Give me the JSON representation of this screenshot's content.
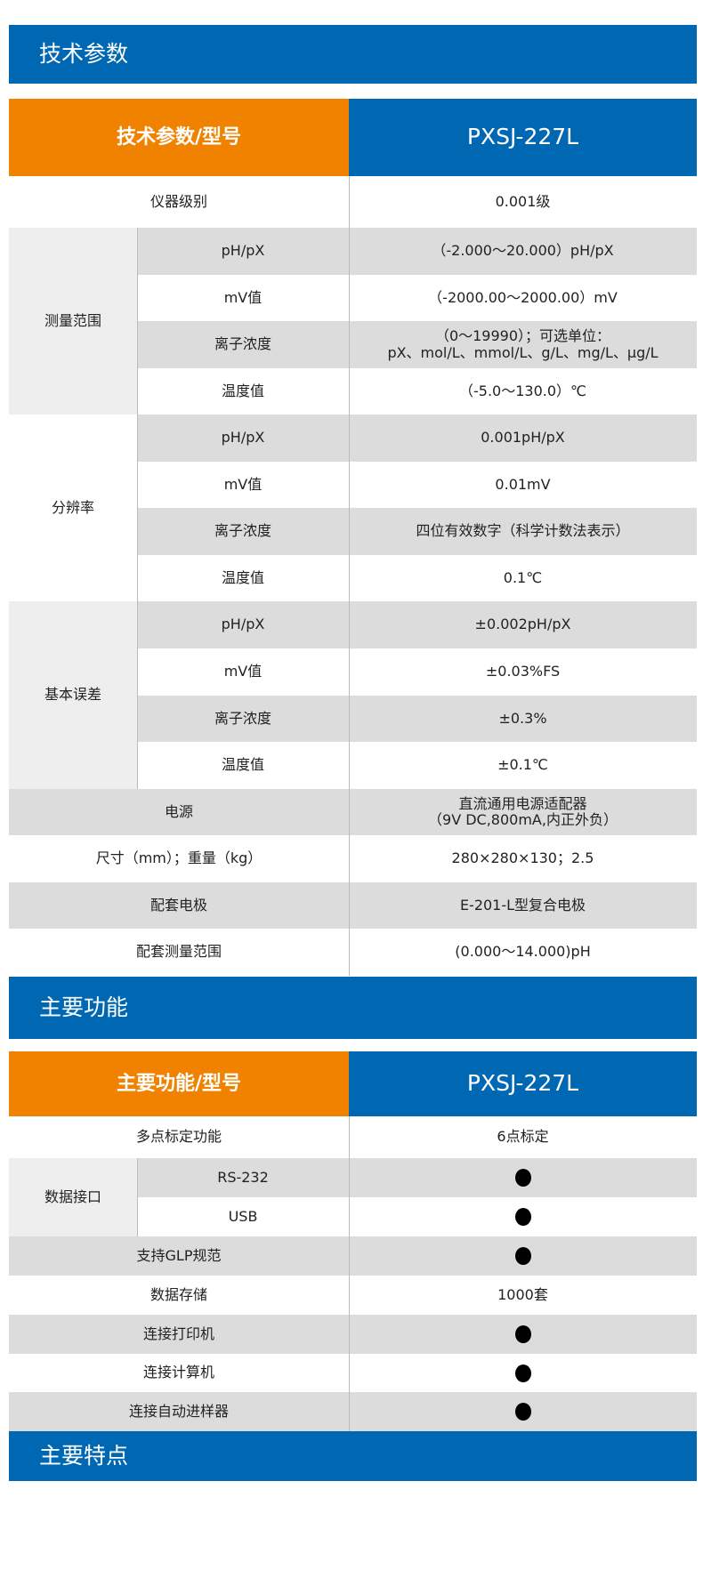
{
  "colors": {
    "blue": "#0068b3",
    "orange": "#f08200",
    "row_gray": "#dcdcdc",
    "group_gray": "#eeeeee"
  },
  "sections": {
    "tech_title": "技术参数",
    "func_title": "主要功能",
    "feature_title": "主要特点"
  },
  "tech_table": {
    "header_left": "技术参数/型号",
    "header_right": "PXSJ-227L",
    "rows": [
      {
        "label": "仪器级别",
        "value": "0.001级"
      },
      {
        "group": "测量范围",
        "label": "pH/pX",
        "value": "（-2.000～20.000）pH/pX"
      },
      {
        "group": "测量范围",
        "label": "mV值",
        "value": "（-2000.00～2000.00）mV"
      },
      {
        "group": "测量范围",
        "label": "离子浓度",
        "value": "（0～19990）；可选单位：\npX、mol/L、mmol/L、g/L、mg/L、μg/L"
      },
      {
        "group": "测量范围",
        "label": "温度值",
        "value": "（-5.0～130.0）℃"
      },
      {
        "group": "分辨率",
        "label": "pH/pX",
        "value": "0.001pH/pX"
      },
      {
        "group": "分辨率",
        "label": "mV值",
        "value": "0.01mV"
      },
      {
        "group": "分辨率",
        "label": "离子浓度",
        "value": "四位有效数字（科学计数法表示）"
      },
      {
        "group": "分辨率",
        "label": "温度值",
        "value": "0.1℃"
      },
      {
        "group": "基本误差",
        "label": "pH/pX",
        "value": "±0.002pH/pX"
      },
      {
        "group": "基本误差",
        "label": "mV值",
        "value": "±0.03%FS"
      },
      {
        "group": "基本误差",
        "label": "离子浓度",
        "value": "±0.3%"
      },
      {
        "group": "基本误差",
        "label": "温度值",
        "value": "±0.1℃"
      },
      {
        "label": "电源",
        "value": "直流通用电源适配器\n（9V DC,800mA,内正外负）"
      },
      {
        "label": "尺寸（mm）；重量（kg）",
        "value": "280×280×130；2.5"
      },
      {
        "label": "配套电极",
        "value": "E-201-L型复合电极"
      },
      {
        "label": "配套测量范围",
        "value": "(0.000～14.000)pH"
      }
    ]
  },
  "func_table": {
    "header_left": "主要功能/型号",
    "header_right": "PXSJ-227L",
    "rows": [
      {
        "label": "多点标定功能",
        "value": "6点标定"
      },
      {
        "group": "数据接口",
        "label": "RS-232",
        "value": "●"
      },
      {
        "group": "数据接口",
        "label": "USB",
        "value": "●"
      },
      {
        "label": "支持GLP规范",
        "value": "●"
      },
      {
        "label": "数据存储",
        "value": "1000套"
      },
      {
        "label": "连接打印机",
        "value": "●"
      },
      {
        "label": "连接计算机",
        "value": "●"
      },
      {
        "label": "连接自动进样器",
        "value": "●"
      }
    ]
  }
}
